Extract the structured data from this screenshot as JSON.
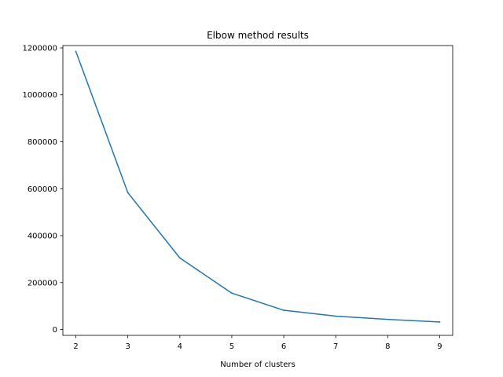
{
  "chart_data": {
    "type": "line",
    "title": "Elbow method results",
    "xlabel": "Number of clusters",
    "ylabel": "",
    "x": [
      2,
      3,
      4,
      5,
      6,
      7,
      8,
      9
    ],
    "series": [
      {
        "values": [
          1185000,
          583000,
          305000,
          155000,
          82000,
          57000,
          43000,
          32000
        ],
        "color": "#1f77b4"
      }
    ],
    "xlim": [
      1.75,
      9.25
    ],
    "ylim": [
      -25000,
      1210000
    ],
    "xticks": [
      2,
      3,
      4,
      5,
      6,
      7,
      8,
      9
    ],
    "yticks": [
      0,
      200000,
      400000,
      600000,
      800000,
      1000000,
      1200000
    ],
    "grid": false,
    "legend": false
  }
}
